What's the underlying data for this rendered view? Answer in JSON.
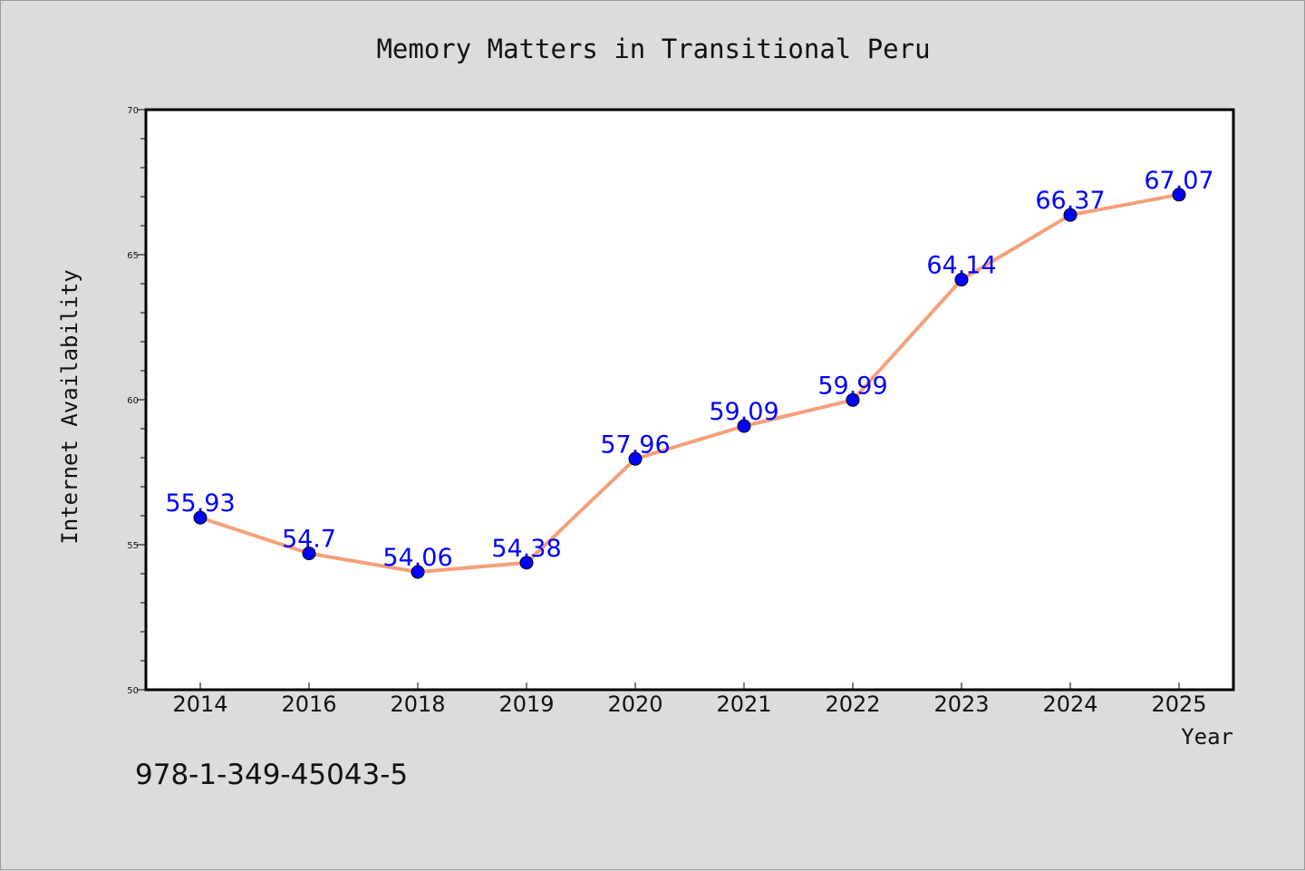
{
  "chart_data": {
    "type": "line",
    "title": "Memory Matters in Transitional Peru",
    "xlabel": "Year",
    "ylabel": "Internet Availability",
    "categories": [
      "2014",
      "2016",
      "2018",
      "2019",
      "2020",
      "2021",
      "2022",
      "2023",
      "2024",
      "2025"
    ],
    "series": [
      {
        "values": [
          55.93,
          54.7,
          54.06,
          54.38,
          57.96,
          59.09,
          59.99,
          64.14,
          66.37,
          67.07
        ],
        "data_labels": [
          "55.93",
          "54.7",
          "54.06",
          "54.38",
          "57.96",
          "59.09",
          "59.99",
          "64.14",
          "66.37",
          "67.07"
        ],
        "line_color": "#f4a07a",
        "marker_color": "#0000ff"
      }
    ],
    "ylim": [
      50,
      70
    ],
    "yticks": [
      "50",
      "55",
      "60",
      "65",
      "70"
    ],
    "grid": false,
    "legend": "none"
  },
  "footer": {
    "isbn": "978-1-349-45043-5"
  },
  "colors": {
    "background": "#dcdcdc",
    "plot_background": "#ffffff",
    "label_color": "#0000ff"
  }
}
